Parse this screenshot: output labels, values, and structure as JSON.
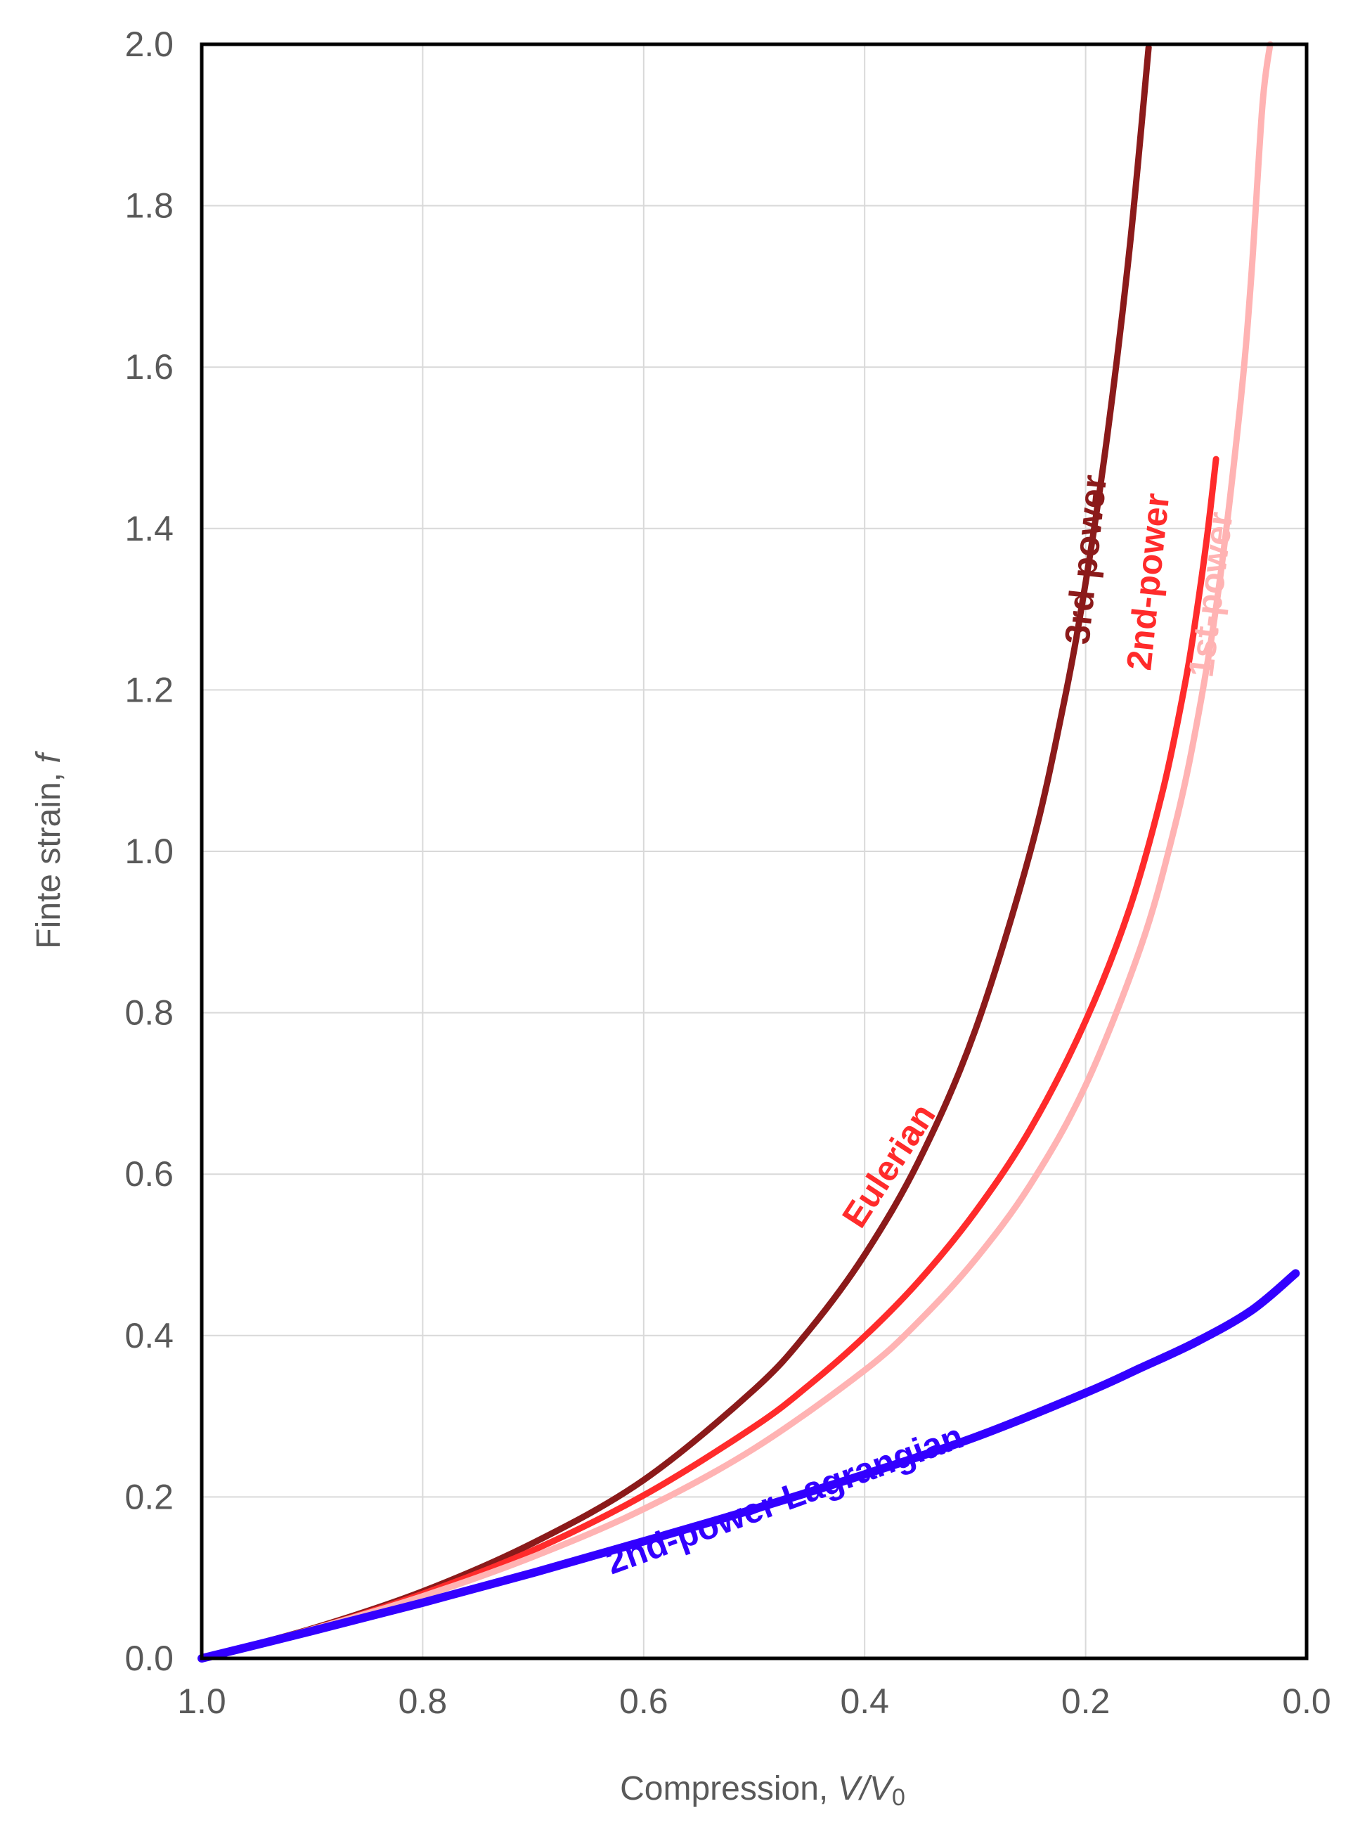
{
  "chart_data": {
    "type": "line",
    "title": "",
    "xlabel": "Compression, V/V0",
    "xlabel_parts": {
      "prefix": "Compression, ",
      "var": "V/V",
      "sub": "0"
    },
    "ylabel": "Finte strain, f",
    "ylabel_parts": {
      "prefix": "Finte strain, ",
      "var": "f"
    },
    "xlim": [
      1.0,
      0.0
    ],
    "ylim": [
      0.0,
      2.0
    ],
    "x_reversed": true,
    "grid": true,
    "x_ticks": [
      1.0,
      0.8,
      0.6,
      0.4,
      0.2,
      0.0
    ],
    "x_tick_labels": [
      "1.0",
      "0.8",
      "0.6",
      "0.4",
      "0.2",
      "0.0"
    ],
    "y_ticks": [
      0.0,
      0.2,
      0.4,
      0.6,
      0.8,
      1.0,
      1.2,
      1.4,
      1.6,
      1.8,
      2.0
    ],
    "y_tick_labels": [
      "0.0",
      "0.2",
      "0.4",
      "0.6",
      "0.8",
      "1.0",
      "1.2",
      "1.4",
      "1.6",
      "1.8",
      "2.0"
    ],
    "series": [
      {
        "name": "3rd-power",
        "color": "#8b1a1a",
        "x": [
          1.0,
          0.9,
          0.8,
          0.7,
          0.6,
          0.5,
          0.45,
          0.4,
          0.35,
          0.3,
          0.25,
          0.22,
          0.2,
          0.18,
          0.16,
          0.143
        ],
        "y": [
          0.0,
          0.037,
          0.083,
          0.143,
          0.221,
          0.333,
          0.407,
          0.5,
          0.619,
          0.778,
          1.0,
          1.182,
          1.333,
          1.519,
          1.75,
          1.996
        ]
      },
      {
        "name": "2nd-power",
        "color": "#ff2b2b",
        "x": [
          1.0,
          0.9,
          0.8,
          0.7,
          0.6,
          0.5,
          0.45,
          0.4,
          0.35,
          0.3,
          0.25,
          0.2,
          0.16,
          0.13,
          0.11,
          0.1,
          0.09,
          0.082
        ],
        "y": [
          0.0,
          0.036,
          0.08,
          0.134,
          0.202,
          0.287,
          0.339,
          0.399,
          0.469,
          0.553,
          0.656,
          0.79,
          0.93,
          1.076,
          1.208,
          1.292,
          1.391,
          1.486
        ]
      },
      {
        "name": "1st-power",
        "color": "#ffb3b3",
        "x": [
          1.0,
          0.9,
          0.8,
          0.7,
          0.6,
          0.5,
          0.4,
          0.35,
          0.3,
          0.25,
          0.2,
          0.15,
          0.12,
          0.1,
          0.08,
          0.06,
          0.05,
          0.04,
          0.033
        ],
        "y": [
          0.0,
          0.036,
          0.077,
          0.126,
          0.185,
          0.26,
          0.357,
          0.419,
          0.494,
          0.587,
          0.71,
          0.882,
          1.027,
          1.154,
          1.321,
          1.554,
          1.714,
          1.924,
          2.0
        ]
      },
      {
        "name": "2nd-power Lagrangian",
        "color": "#3300ff",
        "x": [
          1.0,
          0.9,
          0.8,
          0.7,
          0.6,
          0.5,
          0.4,
          0.3,
          0.2,
          0.15,
          0.1,
          0.05,
          0.01
        ],
        "y": [
          0.0,
          0.034,
          0.069,
          0.106,
          0.145,
          0.185,
          0.228,
          0.274,
          0.329,
          0.36,
          0.392,
          0.431,
          0.477
        ]
      }
    ],
    "annotations": [
      {
        "text": "Eulerian",
        "color": "#ff2b2b"
      },
      {
        "text": "3rd-power",
        "color": "#8b1a1a"
      },
      {
        "text": "2nd-power",
        "color": "#ff2b2b"
      },
      {
        "text": "1st-power",
        "color": "#ffb3b3"
      },
      {
        "text": "2nd-power Lagrangian",
        "color": "#3300ff"
      }
    ]
  }
}
